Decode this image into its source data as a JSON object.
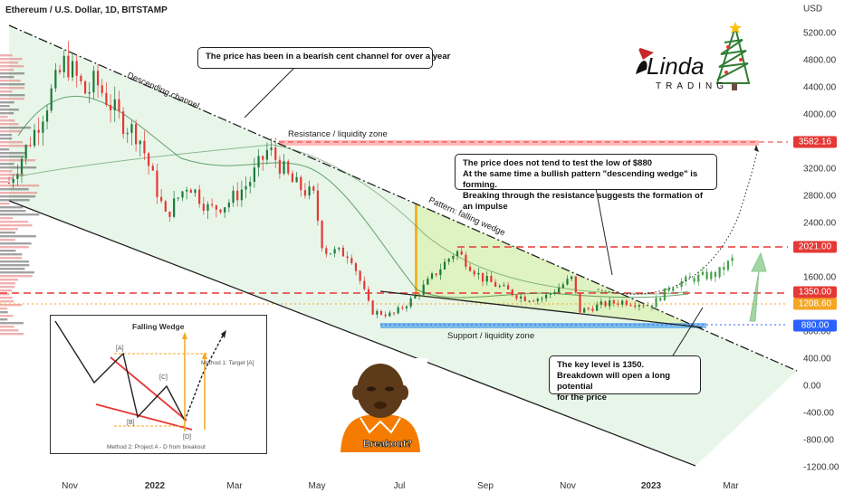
{
  "title": "Ethereum / U.S. Dollar, 1D, BITSTAMP",
  "currency": "USD",
  "y_ticks": [
    "5200.00",
    "4800.00",
    "4400.00",
    "4000.00",
    "3200.00",
    "2800.00",
    "2400.00",
    "1600.00",
    "800.00",
    "400.00",
    "0.00",
    "-400.00",
    "-800.00",
    "-1200.00"
  ],
  "x_ticks": [
    {
      "label": "Nov",
      "bold": false
    },
    {
      "label": "2022",
      "bold": true
    },
    {
      "label": "Mar",
      "bold": false
    },
    {
      "label": "May",
      "bold": false
    },
    {
      "label": "Jul",
      "bold": false
    },
    {
      "label": "Sep",
      "bold": false
    },
    {
      "label": "Nov",
      "bold": false
    },
    {
      "label": "2023",
      "bold": true
    },
    {
      "label": "Mar",
      "bold": false
    }
  ],
  "price_tags": [
    {
      "label": "3582.16",
      "color": "#e53935"
    },
    {
      "label": "2021.00",
      "color": "#e53935"
    },
    {
      "label": "1350.00",
      "color": "#e53935"
    },
    {
      "label": "1208.60",
      "color": "#f5a623"
    },
    {
      "label": "880.00",
      "color": "#2962ff"
    }
  ],
  "annotations": {
    "channel_box": "The price has been in a bearish cent channel for over a year",
    "wedge_box_1": "The price does not tend to test the low of $880",
    "wedge_box_2": "At the same time a bullish pattern \"descending wedge\" is forming.",
    "wedge_box_3": "Breaking through the resistance suggests the formation of an impulse",
    "key_box_1": "The key level is 1350.",
    "key_box_2": "Breakdown will open a long potential",
    "key_box_3": "for the price",
    "descending_channel": "Descending channel",
    "resistance_zone": "Resistance / liquidity zone",
    "pattern_wedge": "Pattern: falling wedge",
    "support_zone": "Support / liquidity zone"
  },
  "logo": {
    "text_main": "Linda",
    "text_sub": "TRADING"
  },
  "inset": {
    "title": "Falling Wedge",
    "label_a": "[A]",
    "label_b": "[B]",
    "label_c": "[C]",
    "label_d": "[D]",
    "method1": "Method 1: Target [A]",
    "method2": "Method 2: Project A - D from breakout"
  },
  "meme": {
    "caption": "Breakout?"
  },
  "chart_data": {
    "type": "line",
    "title": "Ethereum / U.S. Dollar, 1D, BITSTAMP",
    "x_range": [
      "2021-10-01",
      "2023-03-31"
    ],
    "y_range": [
      -1200,
      5600
    ],
    "price_series": {
      "name": "ETHUSD",
      "x": [
        "2021-10-01",
        "2021-10-20",
        "2021-11-10",
        "2021-11-25",
        "2021-12-01",
        "2021-12-20",
        "2022-01-01",
        "2022-01-20",
        "2022-02-05",
        "2022-02-20",
        "2022-03-05",
        "2022-03-20",
        "2022-04-03",
        "2022-04-20",
        "2022-05-05",
        "2022-05-12",
        "2022-05-31",
        "2022-06-15",
        "2022-06-30",
        "2022-07-15",
        "2022-08-01",
        "2022-08-14",
        "2022-09-01",
        "2022-09-15",
        "2022-10-01",
        "2022-10-15",
        "2022-11-05",
        "2022-11-09",
        "2022-11-25",
        "2022-12-10",
        "2022-12-31",
        "2023-01-15",
        "2023-01-31",
        "2023-02-15",
        "2023-02-28"
      ],
      "values": [
        3000,
        3800,
        4800,
        4300,
        4500,
        3900,
        3700,
        2500,
        3000,
        2600,
        2700,
        3000,
        3500,
        3000,
        2800,
        2000,
        1950,
        1100,
        1050,
        1300,
        1700,
        2000,
        1600,
        1450,
        1300,
        1300,
        1600,
        1100,
        1200,
        1250,
        1200,
        1500,
        1600,
        1650,
        1900
      ]
    },
    "levels": [
      {
        "name": "Resistance / liquidity zone",
        "value": 3582.16
      },
      {
        "name": "",
        "value": 2021
      },
      {
        "name": "Key level",
        "value": 1350
      },
      {
        "name": "",
        "value": 1208.6
      },
      {
        "name": "Support / liquidity zone",
        "value": 880
      }
    ]
  }
}
